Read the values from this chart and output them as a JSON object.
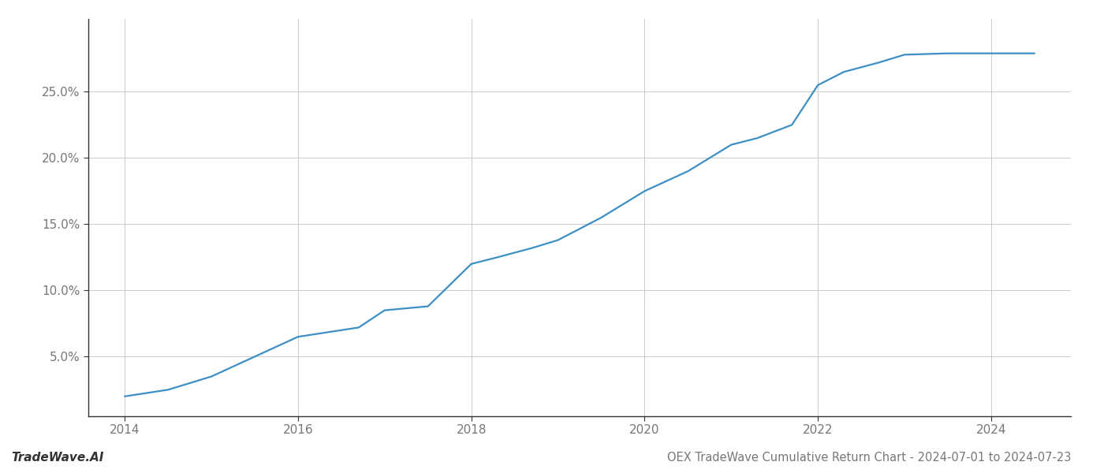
{
  "x_values": [
    2014.0,
    2014.5,
    2015.0,
    2015.5,
    2016.0,
    2016.3,
    2016.7,
    2017.0,
    2017.5,
    2018.0,
    2018.3,
    2018.7,
    2019.0,
    2019.5,
    2020.0,
    2020.5,
    2021.0,
    2021.3,
    2021.7,
    2022.0,
    2022.3,
    2022.7,
    2023.0,
    2023.5,
    2024.0,
    2024.5
  ],
  "y_values": [
    2.0,
    2.5,
    3.5,
    5.0,
    6.5,
    6.8,
    7.2,
    8.5,
    8.8,
    12.0,
    12.5,
    13.2,
    13.8,
    15.5,
    17.5,
    19.0,
    21.0,
    21.5,
    22.5,
    25.5,
    26.5,
    27.2,
    27.8,
    27.9,
    27.9,
    27.9
  ],
  "line_color": "#3d8fc4",
  "line_width": 1.6,
  "title": "OEX TradeWave Cumulative Return Chart - 2024-07-01 to 2024-07-23",
  "watermark": "TradeWave.AI",
  "xlim": [
    2013.58,
    2024.92
  ],
  "ylim": [
    0.5,
    30.5
  ],
  "xticks": [
    2014,
    2016,
    2018,
    2020,
    2022,
    2024
  ],
  "yticks": [
    5.0,
    10.0,
    15.0,
    20.0,
    25.0
  ],
  "background_color": "#ffffff",
  "grid_color": "#cccccc",
  "grid_linewidth": 0.7,
  "title_fontsize": 10.5,
  "tick_fontsize": 11,
  "watermark_fontsize": 11,
  "spine_color": "#333333"
}
